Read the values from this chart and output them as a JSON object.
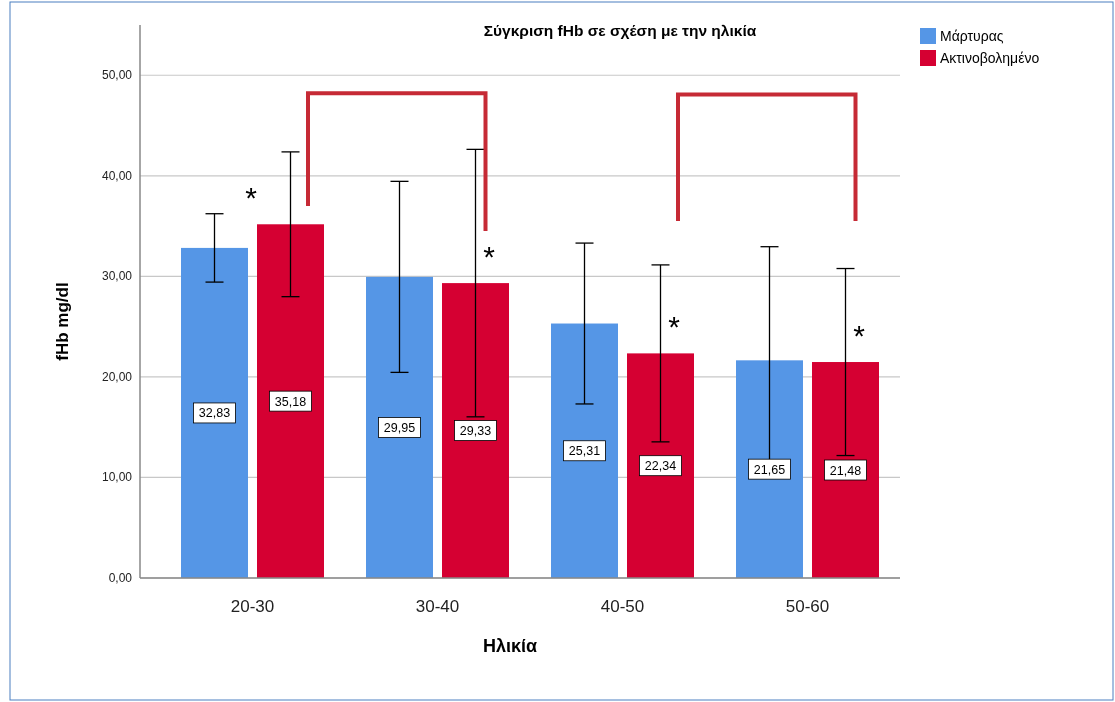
{
  "chart_data": {
    "type": "bar",
    "title": "Σύγκριση fHb σε σχέση με την ηλικία",
    "xlabel": "Ηλικία",
    "ylabel": "fHb mg/dl",
    "categories": [
      "20-30",
      "30-40",
      "40-50",
      "50-60"
    ],
    "series": [
      {
        "name": "Μάρτυρας",
        "color": "#5596e6",
        "values": [
          32.83,
          29.95,
          25.31,
          21.65
        ],
        "errors": [
          3.4,
          9.5,
          8.0,
          11.3
        ],
        "value_labels": [
          "32,83",
          "29,95",
          "25,31",
          "21,65"
        ]
      },
      {
        "name": "Ακτινοβολημένο",
        "color": "#d50032",
        "values": [
          35.18,
          29.33,
          22.34,
          21.48
        ],
        "errors": [
          7.2,
          13.3,
          8.8,
          9.3
        ],
        "value_labels": [
          "35,18",
          "29,33",
          "22,34",
          "21,48"
        ]
      }
    ],
    "ylim": [
      0,
      55
    ],
    "yticks": [
      {
        "value": 0,
        "label": "0,00"
      },
      {
        "value": 10,
        "label": "10,00"
      },
      {
        "value": 20,
        "label": "20,00"
      },
      {
        "value": 30,
        "label": "30,00"
      },
      {
        "value": 40,
        "label": "40,00"
      },
      {
        "value": 50,
        "label": "50,00"
      }
    ],
    "grid": "y",
    "legend": "top right",
    "annotations": [
      "*",
      "*",
      "*",
      "*"
    ]
  }
}
